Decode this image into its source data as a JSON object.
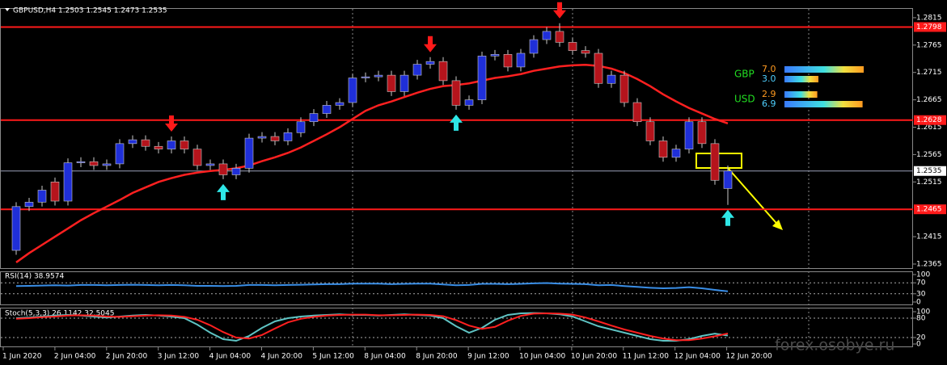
{
  "chart_data": {
    "type": "candlestick",
    "title": "GBPUSD,H4  1.2503 1.2545 1.2473 1.2535",
    "open": [
      1.239,
      1.247,
      1.2478,
      1.2515,
      1.248,
      1.255,
      1.2552,
      1.2545,
      1.2548,
      1.2585,
      1.2592,
      1.258,
      1.2575,
      1.259,
      1.2575,
      1.2545,
      1.2548,
      1.2528,
      1.254,
      1.2595,
      1.2598,
      1.259,
      1.2605,
      1.2625,
      1.264,
      1.2655,
      1.266,
      1.2705,
      1.2707,
      1.271,
      1.268,
      1.271,
      1.273,
      1.2735,
      1.27,
      1.2655,
      1.2665,
      1.2745,
      1.2748,
      1.2725,
      1.275,
      1.2775,
      1.279,
      1.277,
      1.2755,
      1.275,
      1.2695,
      1.271,
      1.266,
      1.2625,
      1.259,
      1.256,
      1.2575,
      1.2625,
      1.2585,
      1.2503
    ],
    "high": [
      1.2478,
      1.2486,
      1.2508,
      1.2523,
      1.2558,
      1.256,
      1.256,
      1.2556,
      1.2593,
      1.26,
      1.26,
      1.2588,
      1.2598,
      1.2598,
      1.2583,
      1.2556,
      1.2556,
      1.2548,
      1.2603,
      1.2606,
      1.2606,
      1.2613,
      1.2633,
      1.2648,
      1.2663,
      1.2668,
      1.2713,
      1.2715,
      1.2718,
      1.2718,
      1.2718,
      1.2738,
      1.2743,
      1.2743,
      1.2708,
      1.2673,
      1.2753,
      1.2756,
      1.2756,
      1.2758,
      1.2783,
      1.2798,
      1.2805,
      1.2778,
      1.2763,
      1.2758,
      1.2718,
      1.2718,
      1.2668,
      1.2633,
      1.2598,
      1.2583,
      1.2633,
      1.2633,
      1.2593,
      1.2545
    ],
    "low": [
      1.2382,
      1.2462,
      1.247,
      1.2472,
      1.2472,
      1.2542,
      1.2537,
      1.2537,
      1.254,
      1.2577,
      1.2572,
      1.2567,
      1.2567,
      1.2567,
      1.2537,
      1.2537,
      1.252,
      1.252,
      1.2532,
      1.2587,
      1.2582,
      1.2582,
      1.2597,
      1.2617,
      1.2632,
      1.2647,
      1.2652,
      1.2697,
      1.2699,
      1.2672,
      1.2672,
      1.2702,
      1.2722,
      1.2692,
      1.2647,
      1.2647,
      1.2657,
      1.2737,
      1.2717,
      1.2717,
      1.2742,
      1.2767,
      1.2762,
      1.2747,
      1.2742,
      1.2687,
      1.2687,
      1.2652,
      1.2617,
      1.2582,
      1.2552,
      1.2552,
      1.2567,
      1.2577,
      1.251,
      1.2473
    ],
    "close": [
      1.247,
      1.2478,
      1.25,
      1.248,
      1.255,
      1.2552,
      1.2545,
      1.2548,
      1.2585,
      1.2592,
      1.258,
      1.2575,
      1.259,
      1.2575,
      1.2545,
      1.2548,
      1.2528,
      1.254,
      1.2595,
      1.2598,
      1.259,
      1.2605,
      1.2625,
      1.264,
      1.2655,
      1.266,
      1.2705,
      1.2707,
      1.271,
      1.268,
      1.271,
      1.273,
      1.2735,
      1.27,
      1.2655,
      1.2665,
      1.2745,
      1.2748,
      1.2725,
      1.275,
      1.2775,
      1.279,
      1.277,
      1.2755,
      1.275,
      1.2695,
      1.271,
      1.266,
      1.2625,
      1.259,
      1.256,
      1.2575,
      1.2625,
      1.2585,
      1.2518,
      1.2535
    ],
    "up_color": "#1f2fd8",
    "down_color": "#b5141c",
    "wick_color": "#c8c8c8",
    "ylim": [
      1.23576,
      1.28326
    ],
    "yticks": [
      1.2815,
      1.2765,
      1.2715,
      1.2665,
      1.2615,
      1.2565,
      1.2515,
      1.2415,
      1.2365
    ],
    "levels": [
      {
        "value": 1.2798,
        "color": "#ff1a1a"
      },
      {
        "value": 1.2628,
        "color": "#ff1a1a"
      },
      {
        "value": 1.2465,
        "color": "#ff1a1a"
      }
    ],
    "last_price": 1.2535,
    "lines": [
      {
        "color": "#ff2020",
        "values": [
          1.2368,
          1.2385,
          1.24,
          1.2415,
          1.243,
          1.2445,
          1.2458,
          1.247,
          1.2482,
          1.2495,
          1.2505,
          1.2515,
          1.2522,
          1.2528,
          1.2532,
          1.2535,
          1.2537,
          1.254,
          1.2545,
          1.2553,
          1.256,
          1.2568,
          1.2578,
          1.259,
          1.2602,
          1.2615,
          1.263,
          1.2645,
          1.2655,
          1.2662,
          1.267,
          1.2678,
          1.2685,
          1.269,
          1.2692,
          1.2695,
          1.27,
          1.2705,
          1.2708,
          1.2712,
          1.2718,
          1.2722,
          1.2726,
          1.2728,
          1.2729,
          1.2727,
          1.2722,
          1.2714,
          1.2703,
          1.269,
          1.2675,
          1.2662,
          1.265,
          1.264,
          1.263,
          1.2622
        ]
      }
    ],
    "fractals": {
      "up": [
        16,
        34,
        55
      ],
      "down": [
        12,
        32,
        42
      ]
    },
    "xlabels": [
      "1 Jun 2020",
      "2 Jun 04:00",
      "2 Jun 20:00",
      "3 Jun 12:00",
      "4 Jun 04:00",
      "4 Jun 20:00",
      "5 Jun 12:00",
      "8 Jun 04:00",
      "8 Jun 20:00",
      "9 Jun 12:00",
      "10 Jun 04:00",
      "10 Jun 20:00",
      "11 Jun 12:00",
      "12 Jun 04:00",
      "12 Jun 20:00"
    ],
    "rsi": {
      "title": "RSI(14) 38.9574",
      "ylim": [
        0,
        100
      ],
      "yticks": [
        100,
        70,
        30,
        0
      ],
      "levels": [
        70,
        30
      ],
      "series": [
        {
          "color": "#3a8ee6",
          "values": [
            58,
            59,
            60,
            61,
            60,
            62,
            62,
            61,
            62,
            63,
            62,
            61,
            62,
            61,
            59,
            59,
            58,
            59,
            62,
            62,
            61,
            62,
            63,
            64,
            65,
            65,
            67,
            67,
            67,
            65,
            66,
            67,
            67,
            64,
            61,
            62,
            66,
            66,
            65,
            66,
            68,
            69,
            67,
            66,
            65,
            61,
            62,
            58,
            55,
            52,
            50,
            51,
            54,
            50,
            44,
            38.9574
          ]
        }
      ]
    },
    "stoch": {
      "title": "Stoch(5,3,3) 26.1142 32.5045",
      "ylim": [
        0,
        100
      ],
      "yticks": [
        100,
        80,
        20,
        0
      ],
      "levels": [
        80,
        20
      ],
      "series": [
        {
          "color": "#5fc4c4",
          "values": [
            80,
            82,
            85,
            88,
            90,
            88,
            85,
            82,
            85,
            88,
            90,
            88,
            85,
            80,
            60,
            35,
            15,
            10,
            25,
            50,
            70,
            80,
            85,
            88,
            90,
            92,
            90,
            90,
            88,
            90,
            92,
            90,
            88,
            80,
            55,
            35,
            50,
            75,
            90,
            95,
            96,
            95,
            92,
            85,
            70,
            55,
            45,
            35,
            25,
            15,
            10,
            10,
            15,
            25,
            32,
            26.1142
          ]
        },
        {
          "color": "#ff2020",
          "values": [
            78,
            80,
            83,
            85,
            88,
            89,
            88,
            85,
            84,
            86,
            88,
            89,
            88,
            84,
            75,
            58,
            37,
            20,
            17,
            28,
            48,
            67,
            78,
            84,
            88,
            90,
            91,
            91,
            89,
            89,
            90,
            91,
            90,
            86,
            74,
            57,
            47,
            53,
            72,
            87,
            94,
            95,
            94,
            91,
            82,
            70,
            57,
            45,
            35,
            25,
            17,
            12,
            12,
            17,
            24,
            32.5045
          ]
        }
      ]
    },
    "strength": [
      {
        "name": "GBP",
        "values": [
          7,
          3
        ],
        "value_labels": [
          "7.0",
          "3.0"
        ]
      },
      {
        "name": "USD",
        "values": [
          2.9,
          6.9
        ],
        "value_labels": [
          "2.9",
          "6.9"
        ]
      }
    ]
  },
  "watermark": "forex.osobye.ru"
}
